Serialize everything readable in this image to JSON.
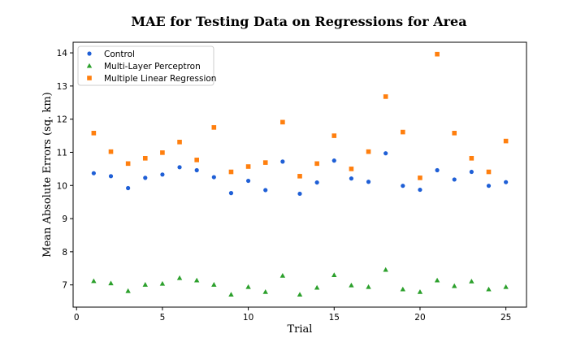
{
  "chart_data": {
    "type": "scatter",
    "title": "MAE for Testing Data on Regressions for Area",
    "xlabel": "Trial",
    "ylabel": "Mean Absolute Errors (sq. km)",
    "xlim": [
      -0.2,
      26.2
    ],
    "ylim": [
      6.33,
      14.32
    ],
    "xticks": [
      0,
      5,
      10,
      15,
      20,
      25
    ],
    "yticks": [
      7,
      8,
      9,
      10,
      11,
      12,
      13,
      14
    ],
    "grid": false,
    "legend_position": "upper-left",
    "x": [
      1,
      2,
      3,
      4,
      5,
      6,
      7,
      8,
      9,
      10,
      11,
      12,
      13,
      14,
      15,
      16,
      17,
      18,
      19,
      20,
      21,
      22,
      23,
      24,
      25
    ],
    "series": [
      {
        "name": "Control",
        "marker": "circle",
        "color": "#1f5fd6",
        "values": [
          10.37,
          10.28,
          9.92,
          10.23,
          10.33,
          10.55,
          10.46,
          10.25,
          9.77,
          10.14,
          9.86,
          10.72,
          9.75,
          10.09,
          10.75,
          10.21,
          10.11,
          10.97,
          9.99,
          9.87,
          10.46,
          10.18,
          10.41,
          9.99,
          10.1
        ]
      },
      {
        "name": "Multi-Layer Perceptron",
        "marker": "triangle",
        "color": "#2ca02c",
        "values": [
          7.12,
          7.05,
          6.82,
          7.01,
          7.04,
          7.21,
          7.14,
          7.01,
          6.71,
          6.94,
          6.79,
          7.28,
          6.71,
          6.92,
          7.3,
          6.99,
          6.94,
          7.46,
          6.87,
          6.79,
          7.14,
          6.97,
          7.11,
          6.87,
          6.94
        ]
      },
      {
        "name": "Multiple Linear Regression",
        "marker": "square",
        "color": "#ff7f0e",
        "values": [
          11.58,
          11.02,
          10.66,
          10.82,
          10.99,
          11.31,
          10.77,
          11.75,
          10.41,
          10.57,
          10.69,
          11.91,
          10.28,
          10.66,
          11.5,
          10.5,
          11.02,
          12.68,
          11.61,
          10.23,
          13.96,
          11.58,
          10.82,
          10.41,
          11.34
        ]
      }
    ]
  }
}
